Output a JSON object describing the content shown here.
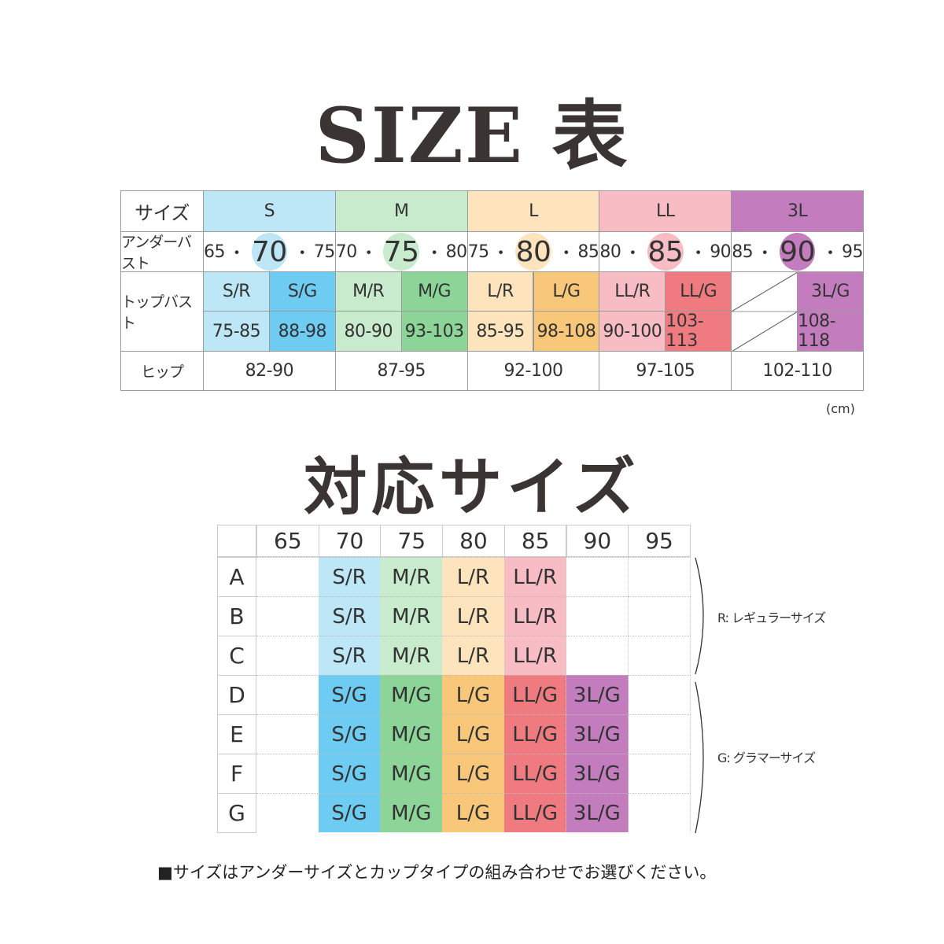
{
  "titles": {
    "size_table": "SIZE 表",
    "compatible": "対応サイズ"
  },
  "colors": {
    "S": "#bde6f6",
    "S_G": "#6ecbf2",
    "M": "#c7ebcc",
    "M_G": "#8cd497",
    "L": "#fde4bd",
    "L_G": "#f9c77a",
    "LL": "#f7bcc4",
    "LL_G": "#ef7b80",
    "3L": "#c37dbe"
  },
  "size_table": {
    "row_labels": {
      "size": "サイズ",
      "under": "アンダーバスト",
      "top": "トップバスト",
      "hip": "ヒップ"
    },
    "sizes": [
      {
        "name": "S",
        "under": [
          "65",
          "70",
          "75"
        ],
        "r": "S/R",
        "r_range": "75-85",
        "g": "S/G",
        "g_range": "88-98",
        "hip": "82-90"
      },
      {
        "name": "M",
        "under": [
          "70",
          "75",
          "80"
        ],
        "r": "M/R",
        "r_range": "80-90",
        "g": "M/G",
        "g_range": "93-103",
        "hip": "87-95"
      },
      {
        "name": "L",
        "under": [
          "75",
          "80",
          "85"
        ],
        "r": "L/R",
        "r_range": "85-95",
        "g": "L/G",
        "g_range": "98-108",
        "hip": "92-100"
      },
      {
        "name": "LL",
        "under": [
          "80",
          "85",
          "90"
        ],
        "r": "LL/R",
        "r_range": "90-100",
        "g": "LL/G",
        "g_range": "103-113",
        "hip": "97-105"
      },
      {
        "name": "3L",
        "under": [
          "85",
          "90",
          "95"
        ],
        "r": "",
        "r_range": "",
        "g": "3L/G",
        "g_range": "108-118",
        "hip": "102-110"
      }
    ],
    "unit": "(cm)"
  },
  "compat_table": {
    "columns": [
      "65",
      "70",
      "75",
      "80",
      "85",
      "90",
      "95"
    ],
    "rows": [
      {
        "cup": "A",
        "cells": [
          "",
          "S/R",
          "M/R",
          "L/R",
          "LL/R",
          "",
          ""
        ]
      },
      {
        "cup": "B",
        "cells": [
          "",
          "S/R",
          "M/R",
          "L/R",
          "LL/R",
          "",
          ""
        ]
      },
      {
        "cup": "C",
        "cells": [
          "",
          "S/R",
          "M/R",
          "L/R",
          "LL/R",
          "",
          ""
        ]
      },
      {
        "cup": "D",
        "cells": [
          "",
          "S/G",
          "M/G",
          "L/G",
          "LL/G",
          "3L/G",
          ""
        ]
      },
      {
        "cup": "E",
        "cells": [
          "",
          "S/G",
          "M/G",
          "L/G",
          "LL/G",
          "3L/G",
          ""
        ]
      },
      {
        "cup": "F",
        "cells": [
          "",
          "S/G",
          "M/G",
          "L/G",
          "LL/G",
          "3L/G",
          ""
        ]
      },
      {
        "cup": "G",
        "cells": [
          "",
          "S/G",
          "M/G",
          "L/G",
          "LL/G",
          "3L/G",
          ""
        ]
      }
    ],
    "regular_label": "R: レギュラーサイズ",
    "glamour_label": "G: グラマーサイズ"
  },
  "note": "■サイズはアンダーサイズとカップタイプの組み合わせでお選びください。"
}
